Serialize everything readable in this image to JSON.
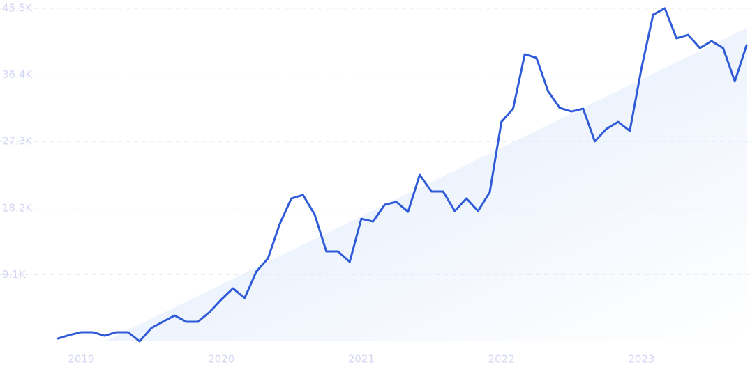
{
  "chart_data": {
    "type": "line",
    "x": [
      2018.8333,
      2018.9167,
      2019,
      2019.0833,
      2019.1667,
      2019.25,
      2019.3333,
      2019.4167,
      2019.5,
      2019.5833,
      2019.6667,
      2019.75,
      2019.8333,
      2019.9167,
      2020,
      2020.0833,
      2020.1667,
      2020.25,
      2020.3333,
      2020.4167,
      2020.5,
      2020.5833,
      2020.6667,
      2020.75,
      2020.8333,
      2020.9167,
      2021,
      2021.0833,
      2021.1667,
      2021.25,
      2021.3333,
      2021.4167,
      2021.5,
      2021.5833,
      2021.6667,
      2021.75,
      2021.8333,
      2021.9167,
      2022,
      2022.0833,
      2022.1667,
      2022.25,
      2022.3333,
      2022.4167,
      2022.5,
      2022.5833,
      2022.6667,
      2022.75,
      2022.8333,
      2022.9167,
      2023,
      2023.0833,
      2023.1667,
      2023.25,
      2023.3333,
      2023.4167,
      2023.5,
      2023.5833,
      2023.6667,
      2023.75
    ],
    "values": [
      380,
      860,
      1240,
      1240,
      760,
      1240,
      1240,
      0,
      1800,
      2670,
      3520,
      2670,
      2670,
      4000,
      5710,
      7230,
      5900,
      9520,
      11330,
      16000,
      19510,
      19990,
      17320,
      12280,
      12280,
      10850,
      16750,
      16370,
      18660,
      19040,
      17700,
      22750,
      20470,
      20470,
      17800,
      19510,
      17800,
      20370,
      29980,
      31790,
      39220,
      38740,
      34170,
      31890,
      31410,
      31790,
      27320,
      29030,
      29980,
      28750,
      37310,
      44640,
      45500,
      41410,
      41880,
      40070,
      41020,
      40070,
      35510,
      40450
    ],
    "color": "#2f5bd8",
    "trend": {
      "x": [
        2019.17,
        2023.75
      ],
      "values": [
        0,
        42800
      ],
      "color": "#e3eefc"
    },
    "xlim": [
      2018.8333,
      2023.75
    ],
    "xticks": [
      2019,
      2020,
      2021,
      2022,
      2023
    ],
    "ylim": [
      0,
      45500
    ],
    "yticks": [
      {
        "value": 9100,
        "label": "9.1K"
      },
      {
        "value": 18200,
        "label": "18.2K"
      },
      {
        "value": 27300,
        "label": "27.3K"
      },
      {
        "value": 36400,
        "label": "36.4K"
      },
      {
        "value": 45500,
        "label": "45.5K"
      }
    ],
    "grid": true
  }
}
